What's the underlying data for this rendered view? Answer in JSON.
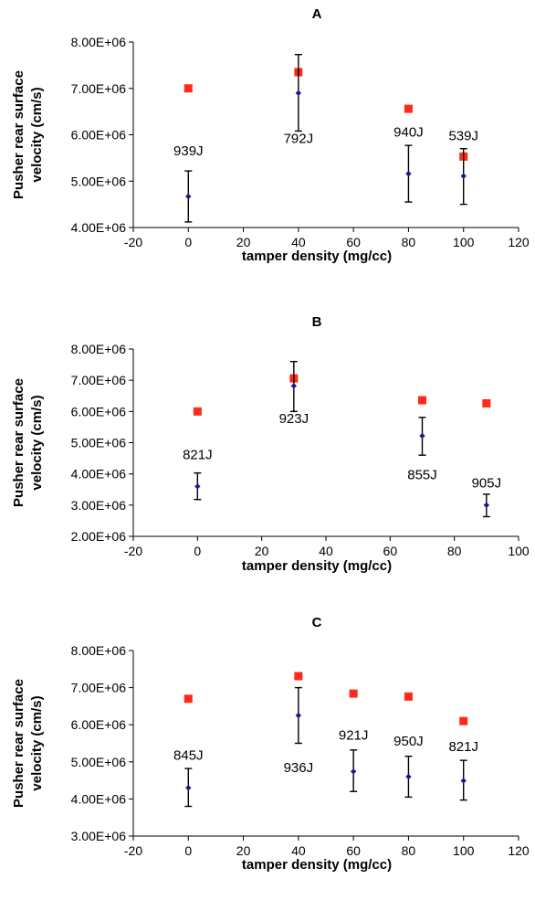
{
  "chart_data": [
    {
      "type": "scatter",
      "title": "A",
      "xlabel": "tamper density (mg/cc)",
      "ylabel_lines": [
        "Pusher rear surface",
        "velocity (cm/s)"
      ],
      "xlim": [
        -20,
        120
      ],
      "ylim": [
        4000000,
        8000000
      ],
      "x_ticks": [
        -20,
        0,
        20,
        40,
        60,
        80,
        100,
        120
      ],
      "y_ticks": [
        "4.00E+06",
        "5.00E+06",
        "6.00E+06",
        "7.00E+06",
        "8.00E+06"
      ],
      "y_tick_values": [
        4000000,
        5000000,
        6000000,
        7000000,
        8000000
      ],
      "grid": false,
      "series": [
        {
          "marker": "square",
          "color": "#ff2a1a",
          "x": [
            0,
            40,
            80,
            100
          ],
          "y": [
            7000000,
            7350000,
            6560000,
            5530000
          ]
        },
        {
          "marker": "diamond",
          "color": "#1a1a8c",
          "x": [
            0,
            40,
            80,
            100
          ],
          "y": [
            4670000,
            6900000,
            5160000,
            5110000
          ],
          "error_low": [
            4120000,
            6080000,
            4550000,
            4500000
          ],
          "error_high": [
            5220000,
            7730000,
            5770000,
            5700000
          ]
        }
      ],
      "annotations": [
        {
          "text": "939J",
          "x": 0,
          "y": 5560000
        },
        {
          "text": "792J",
          "x": 40,
          "y": 5820000
        },
        {
          "text": "940J",
          "x": 80,
          "y": 5960000
        },
        {
          "text": "539J",
          "x": 100,
          "y": 5880000
        }
      ]
    },
    {
      "type": "scatter",
      "title": "B",
      "xlabel": "tamper density (mg/cc)",
      "ylabel_lines": [
        "Pusher rear surface",
        "velocity (cm/s)"
      ],
      "xlim": [
        -20,
        100
      ],
      "ylim": [
        2000000,
        8000000
      ],
      "x_ticks": [
        -20,
        0,
        20,
        40,
        60,
        80,
        100
      ],
      "y_ticks": [
        "2.00E+06",
        "3.00E+06",
        "4.00E+06",
        "5.00E+06",
        "6.00E+06",
        "7.00E+06",
        "8.00E+06"
      ],
      "y_tick_values": [
        2000000,
        3000000,
        4000000,
        5000000,
        6000000,
        7000000,
        8000000
      ],
      "grid": false,
      "series": [
        {
          "marker": "square",
          "color": "#ff2a1a",
          "x": [
            0,
            30,
            70,
            90
          ],
          "y": [
            6000000,
            7060000,
            6360000,
            6260000
          ]
        },
        {
          "marker": "diamond",
          "color": "#1a1a8c",
          "x": [
            0,
            30,
            70,
            90
          ],
          "y": [
            3600000,
            6820000,
            5220000,
            3000000
          ],
          "error_low": [
            3180000,
            6000000,
            4600000,
            2630000
          ],
          "error_high": [
            4030000,
            7600000,
            5810000,
            3350000
          ]
        }
      ],
      "annotations": [
        {
          "text": "821J",
          "x": 0,
          "y": 4470000
        },
        {
          "text": "923J",
          "x": 30,
          "y": 5630000
        },
        {
          "text": "855J",
          "x": 70,
          "y": 3830000
        },
        {
          "text": "905J",
          "x": 90,
          "y": 3570000
        }
      ]
    },
    {
      "type": "scatter",
      "title": "C",
      "xlabel": "tamper density (mg/cc)",
      "ylabel_lines": [
        "Pusher rear surface",
        "velocity (cm/s)"
      ],
      "xlim": [
        -20,
        120
      ],
      "ylim": [
        3000000,
        8000000
      ],
      "x_ticks": [
        -20,
        0,
        20,
        40,
        60,
        80,
        100,
        120
      ],
      "y_ticks": [
        "3.00E+06",
        "4.00E+06",
        "5.00E+06",
        "6.00E+06",
        "7.00E+06",
        "8.00E+06"
      ],
      "y_tick_values": [
        3000000,
        4000000,
        5000000,
        6000000,
        7000000,
        8000000
      ],
      "grid": false,
      "series": [
        {
          "marker": "square",
          "color": "#ff2a1a",
          "x": [
            0,
            40,
            60,
            80,
            100
          ],
          "y": [
            6700000,
            7310000,
            6840000,
            6760000,
            6100000
          ]
        },
        {
          "marker": "diamond",
          "color": "#1a1a8c",
          "x": [
            0,
            40,
            60,
            80,
            100
          ],
          "y": [
            4300000,
            6250000,
            4740000,
            4600000,
            4490000
          ],
          "error_low": [
            3800000,
            5500000,
            4200000,
            4050000,
            3970000
          ],
          "error_high": [
            4820000,
            7000000,
            5320000,
            5150000,
            5040000
          ]
        }
      ],
      "annotations": [
        {
          "text": "845J",
          "x": 0,
          "y": 5060000
        },
        {
          "text": "936J",
          "x": 40,
          "y": 4720000
        },
        {
          "text": "921J",
          "x": 60,
          "y": 5600000
        },
        {
          "text": "950J",
          "x": 80,
          "y": 5440000
        },
        {
          "text": "821J",
          "x": 100,
          "y": 5290000
        }
      ]
    }
  ]
}
